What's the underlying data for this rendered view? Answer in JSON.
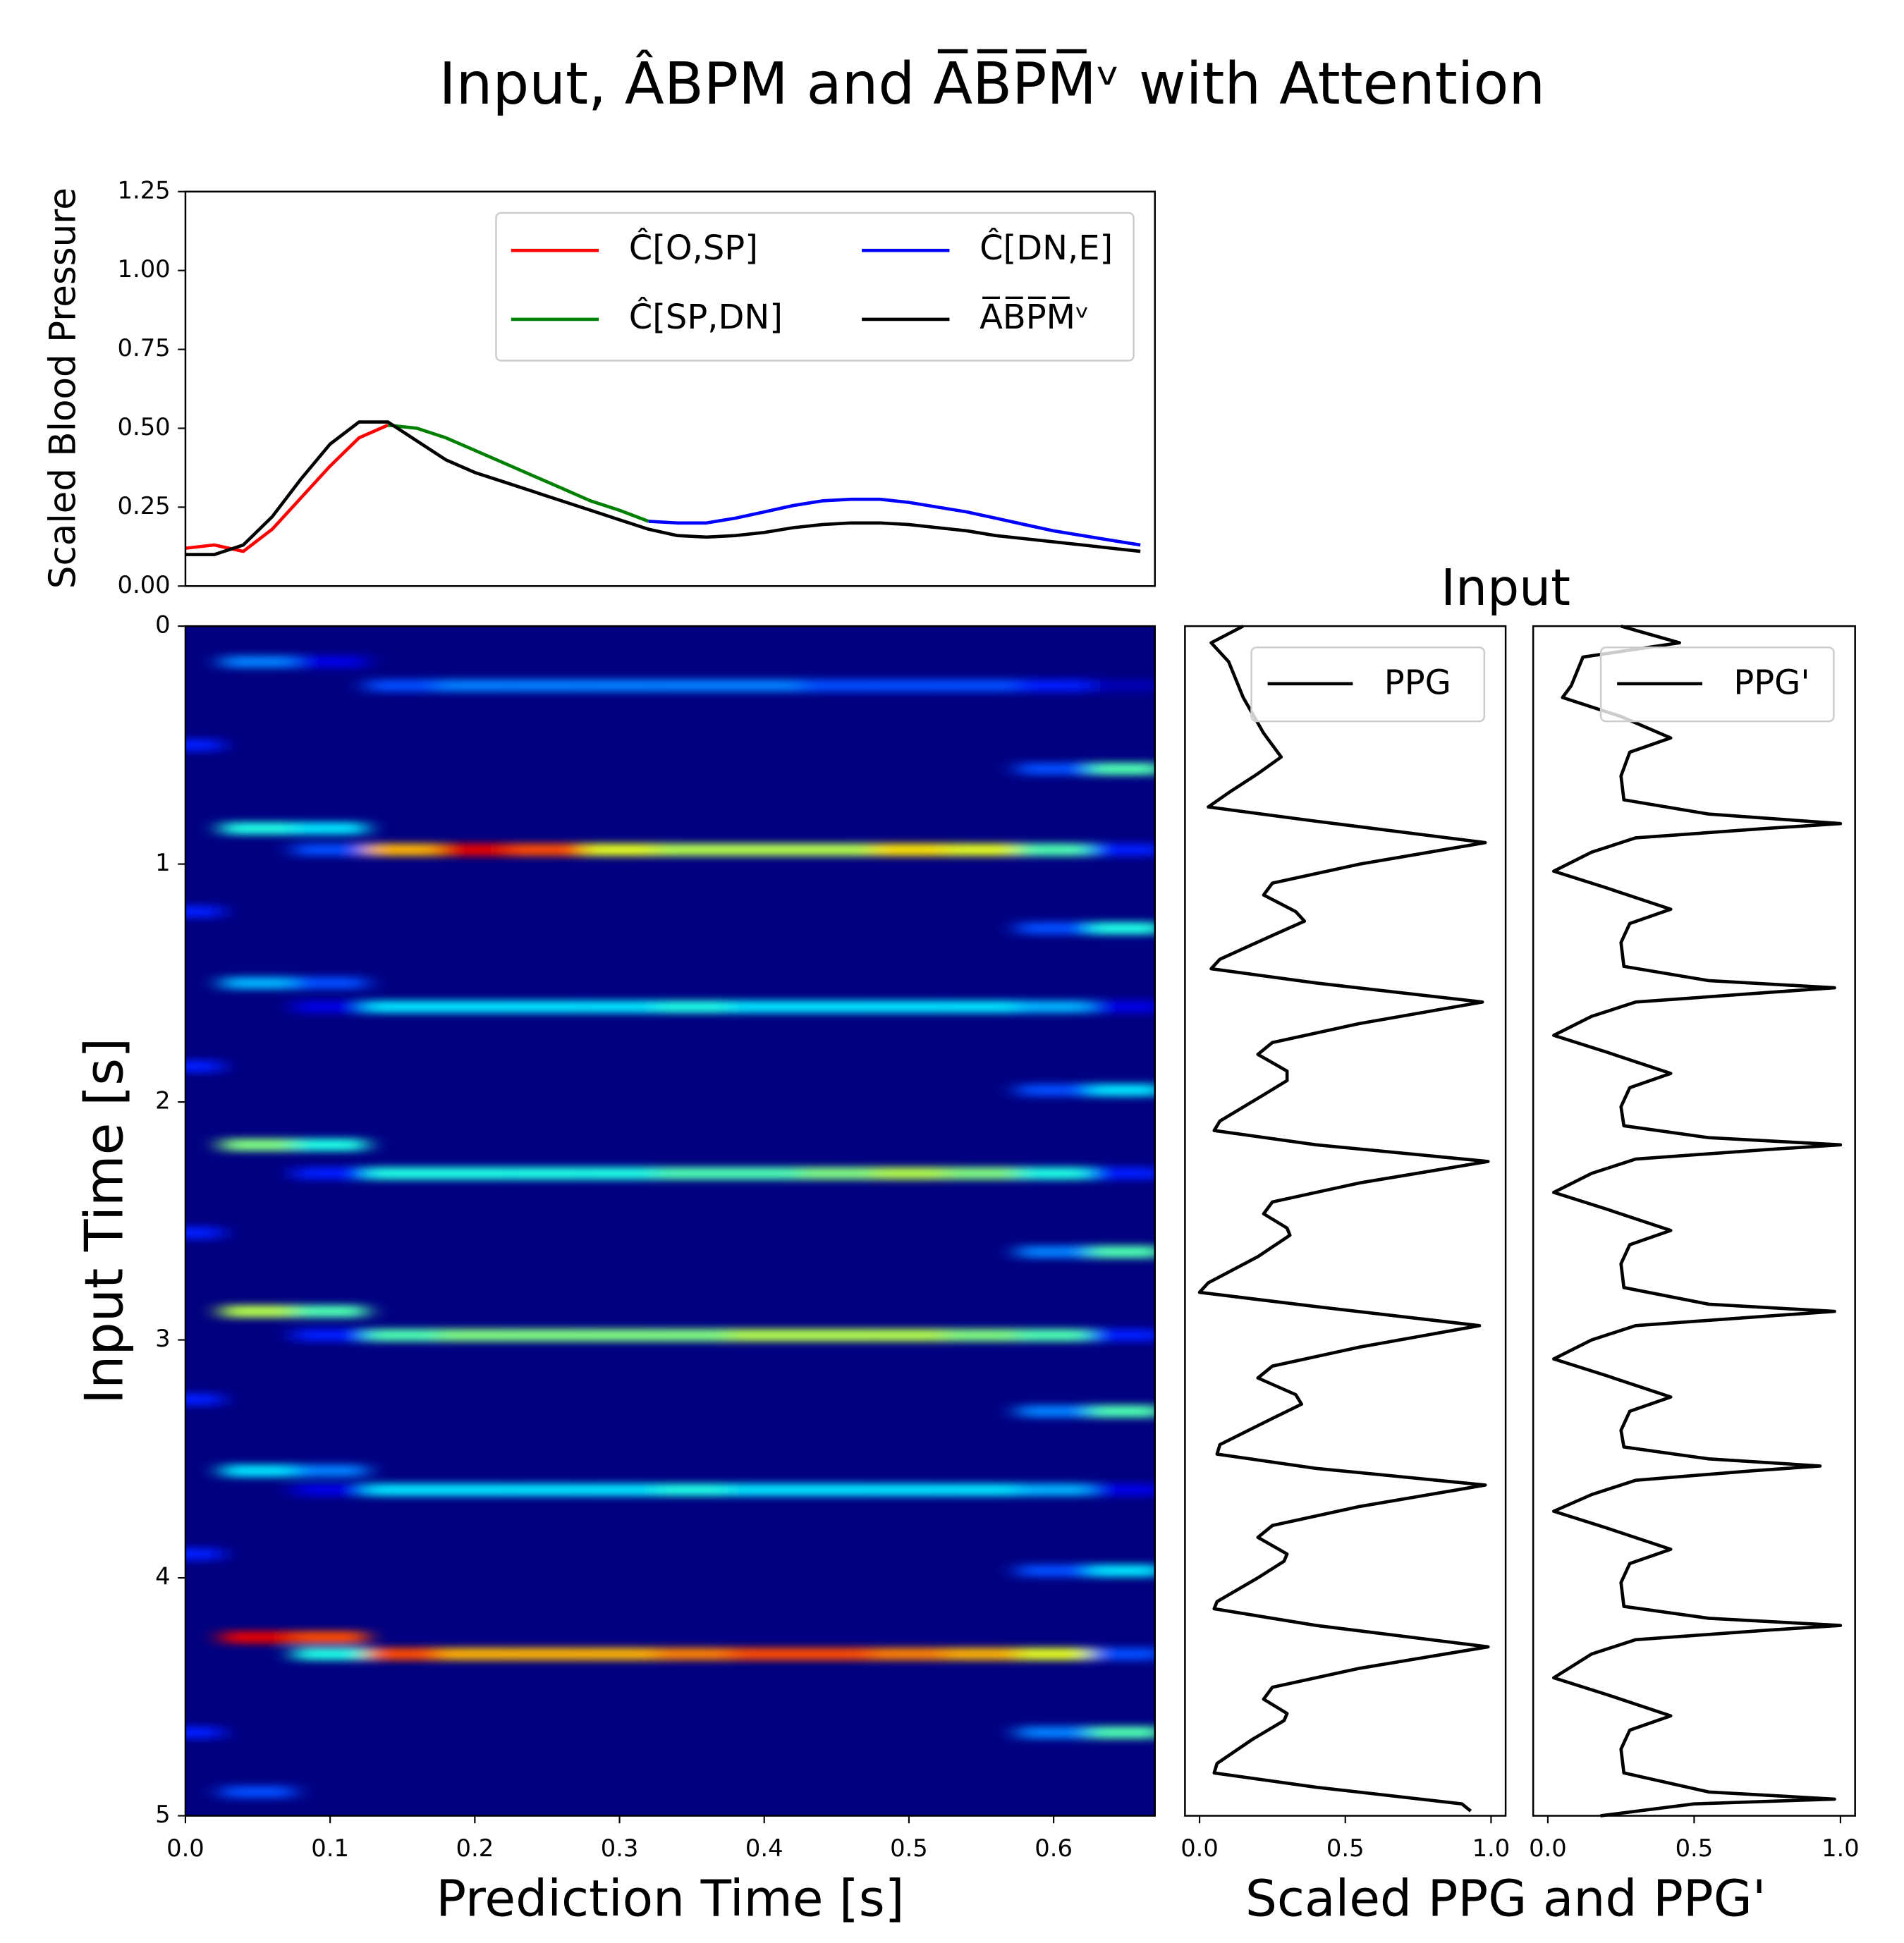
{
  "chart_data": [
    {
      "type": "line",
      "title": "Input, ÂBPM and A̅B̅P̅M̅ᵛ with Attention",
      "ylabel": "Scaled Blood Pressure",
      "xlim": [
        0,
        0.67
      ],
      "ylim": [
        0,
        1.25
      ],
      "yticks": [
        {
          "value": 0,
          "label": "0.00"
        },
        {
          "value": 0.25,
          "label": "0.25"
        },
        {
          "value": 0.5,
          "label": "0.50"
        },
        {
          "value": 0.75,
          "label": "0.75"
        },
        {
          "value": 1,
          "label": "1.00"
        },
        {
          "value": 1.25,
          "label": "1.25"
        }
      ],
      "legend": "upper right",
      "x": [
        0,
        0.02,
        0.04,
        0.06,
        0.08,
        0.1,
        0.12,
        0.14,
        0.16,
        0.18,
        0.2,
        0.22,
        0.24,
        0.26,
        0.28,
        0.3,
        0.32,
        0.34,
        0.36,
        0.38,
        0.4,
        0.42,
        0.44,
        0.46,
        0.48,
        0.5,
        0.52,
        0.54,
        0.56,
        0.58,
        0.6,
        0.62,
        0.64,
        0.66
      ],
      "series": [
        {
          "name": "Ĉ[O,SP]",
          "color": "#ff0000",
          "values": [
            0.12,
            0.13,
            0.11,
            0.18,
            0.28,
            0.38,
            0.47,
            0.51,
            null,
            null,
            null,
            null,
            null,
            null,
            null,
            null,
            null,
            null,
            null,
            null,
            null,
            null,
            null,
            null,
            null,
            null,
            null,
            null,
            null,
            null,
            null,
            null,
            null,
            null
          ]
        },
        {
          "name": "Ĉ[SP,DN]",
          "color": "#008000",
          "values": [
            null,
            null,
            null,
            null,
            null,
            null,
            null,
            0.51,
            0.5,
            0.47,
            0.43,
            0.39,
            0.35,
            0.31,
            0.27,
            0.24,
            0.205,
            null,
            null,
            null,
            null,
            null,
            null,
            null,
            null,
            null,
            null,
            null,
            null,
            null,
            null,
            null,
            null,
            null
          ]
        },
        {
          "name": "Ĉ[DN,E]",
          "color": "#0000ff",
          "values": [
            null,
            null,
            null,
            null,
            null,
            null,
            null,
            null,
            null,
            null,
            null,
            null,
            null,
            null,
            null,
            null,
            0.205,
            0.2,
            0.2,
            0.215,
            0.235,
            0.255,
            0.27,
            0.275,
            0.275,
            0.265,
            0.25,
            0.235,
            0.215,
            0.195,
            0.175,
            0.16,
            0.145,
            0.13
          ]
        },
        {
          "name": "A̅B̅P̅M̅ᵛ",
          "color": "#000000",
          "values": [
            0.1,
            0.1,
            0.13,
            0.22,
            0.34,
            0.45,
            0.52,
            0.52,
            0.46,
            0.4,
            0.36,
            0.33,
            0.3,
            0.27,
            0.24,
            0.21,
            0.18,
            0.16,
            0.155,
            0.16,
            0.17,
            0.185,
            0.195,
            0.2,
            0.2,
            0.195,
            0.185,
            0.175,
            0.16,
            0.15,
            0.14,
            0.13,
            0.12,
            0.11
          ]
        }
      ]
    },
    {
      "type": "heatmap",
      "xlabel": "Prediction Time [s]",
      "ylabel": "Input Time [s]",
      "colormap": "jet",
      "vlim": [
        0,
        1
      ],
      "xlim": [
        0,
        0.67
      ],
      "xticks": [
        {
          "value": 0,
          "label": "0.0"
        },
        0.1,
        0.2,
        0.3,
        0.4,
        0.5,
        0.6
      ],
      "ylim": [
        5,
        0
      ],
      "yticks": [
        0,
        1,
        2,
        3,
        4,
        5
      ],
      "x": [
        0,
        0.05,
        0.1,
        0.15,
        0.2,
        0.25,
        0.3,
        0.35,
        0.4,
        0.45,
        0.5,
        0.55,
        0.6,
        0.65
      ],
      "y": [
        0.15,
        0.25,
        0.5,
        0.6,
        0.85,
        0.94,
        1.2,
        1.27,
        1.5,
        1.6,
        1.85,
        1.95,
        2.18,
        2.3,
        2.55,
        2.63,
        2.88,
        2.98,
        3.25,
        3.3,
        3.55,
        3.63,
        3.9,
        3.97,
        4.25,
        4.32,
        4.65,
        4.9
      ],
      "values": [
        [
          0,
          0.25,
          0.1,
          0,
          0,
          0,
          0,
          0,
          0,
          0,
          0,
          0,
          0,
          0
        ],
        [
          0,
          0,
          0,
          0.2,
          0.25,
          0.25,
          0.25,
          0.25,
          0.25,
          0.2,
          0.2,
          0.2,
          0.15,
          0.05
        ],
        [
          0.15,
          0,
          0,
          0,
          0,
          0,
          0,
          0,
          0,
          0,
          0,
          0,
          0,
          0
        ],
        [
          0,
          0,
          0,
          0,
          0,
          0,
          0,
          0,
          0,
          0,
          0,
          0,
          0.2,
          0.45
        ],
        [
          0,
          0.4,
          0.35,
          0,
          0,
          0,
          0,
          0,
          0,
          0,
          0,
          0,
          0,
          0
        ],
        [
          0,
          0,
          0.2,
          0.7,
          0.9,
          0.8,
          0.6,
          0.55,
          0.55,
          0.55,
          0.65,
          0.6,
          0.45,
          0.15
        ],
        [
          0.15,
          0,
          0,
          0,
          0,
          0,
          0,
          0,
          0,
          0,
          0,
          0,
          0,
          0
        ],
        [
          0,
          0,
          0,
          0,
          0,
          0,
          0,
          0,
          0,
          0,
          0,
          0,
          0.2,
          0.4
        ],
        [
          0,
          0.3,
          0.2,
          0,
          0,
          0,
          0,
          0,
          0,
          0,
          0,
          0,
          0,
          0
        ],
        [
          0,
          0,
          0.1,
          0.35,
          0.35,
          0.35,
          0.35,
          0.4,
          0.35,
          0.35,
          0.35,
          0.35,
          0.3,
          0.1
        ],
        [
          0.15,
          0,
          0,
          0,
          0,
          0,
          0,
          0,
          0,
          0,
          0,
          0,
          0,
          0
        ],
        [
          0,
          0,
          0,
          0,
          0,
          0,
          0,
          0,
          0,
          0,
          0,
          0,
          0.2,
          0.35
        ],
        [
          0,
          0.5,
          0.4,
          0,
          0,
          0,
          0,
          0,
          0,
          0,
          0,
          0,
          0,
          0
        ],
        [
          0,
          0,
          0.15,
          0.4,
          0.4,
          0.4,
          0.4,
          0.45,
          0.45,
          0.5,
          0.55,
          0.5,
          0.4,
          0.15
        ],
        [
          0.15,
          0,
          0,
          0,
          0,
          0,
          0,
          0,
          0,
          0,
          0,
          0,
          0,
          0
        ],
        [
          0,
          0,
          0,
          0,
          0,
          0,
          0,
          0,
          0,
          0,
          0,
          0,
          0.25,
          0.45
        ],
        [
          0,
          0.55,
          0.45,
          0,
          0,
          0,
          0,
          0,
          0,
          0,
          0,
          0,
          0,
          0
        ],
        [
          0,
          0,
          0.15,
          0.45,
          0.5,
          0.5,
          0.5,
          0.5,
          0.55,
          0.55,
          0.55,
          0.5,
          0.45,
          0.15
        ],
        [
          0.15,
          0,
          0,
          0,
          0,
          0,
          0,
          0,
          0,
          0,
          0,
          0,
          0,
          0
        ],
        [
          0,
          0,
          0,
          0,
          0,
          0,
          0,
          0,
          0,
          0,
          0,
          0,
          0.25,
          0.45
        ],
        [
          0,
          0.35,
          0.25,
          0,
          0,
          0,
          0,
          0,
          0,
          0,
          0,
          0,
          0,
          0
        ],
        [
          0,
          0,
          0.1,
          0.35,
          0.35,
          0.35,
          0.35,
          0.4,
          0.35,
          0.35,
          0.35,
          0.35,
          0.3,
          0.1
        ],
        [
          0.15,
          0,
          0,
          0,
          0,
          0,
          0,
          0,
          0,
          0,
          0,
          0,
          0,
          0
        ],
        [
          0,
          0,
          0,
          0,
          0,
          0,
          0,
          0,
          0,
          0,
          0,
          0,
          0.2,
          0.35
        ],
        [
          0,
          0.9,
          0.8,
          0,
          0,
          0,
          0,
          0,
          0,
          0,
          0,
          0,
          0,
          0
        ],
        [
          0,
          0,
          0.4,
          0.8,
          0.7,
          0.7,
          0.7,
          0.75,
          0.8,
          0.8,
          0.75,
          0.7,
          0.6,
          0.2
        ],
        [
          0.15,
          0,
          0,
          0,
          0,
          0,
          0,
          0,
          0,
          0,
          0,
          0,
          0.25,
          0.45
        ],
        [
          0,
          0.2,
          0,
          0,
          0,
          0,
          0,
          0,
          0,
          0,
          0,
          0,
          0,
          0
        ]
      ]
    },
    {
      "type": "vline",
      "title": "Input",
      "xlabel": "Scaled PPG and PPG'",
      "subplots": true,
      "legend": "upper right",
      "xlim": [
        -0.05,
        1.05
      ],
      "xticks": [
        {
          "value": 0,
          "label": "0.0"
        },
        0.5,
        {
          "value": 1,
          "label": "1.0"
        }
      ],
      "ylim": [
        5,
        0
      ],
      "series": [
        {
          "name": "PPG",
          "color": "#000000",
          "y": [
            0,
            0.07,
            0.15,
            0.3,
            0.45,
            0.55,
            0.62,
            0.7,
            0.76,
            0.82,
            0.91,
            1.0,
            1.08,
            1.13,
            1.2,
            1.24,
            1.3,
            1.4,
            1.44,
            1.5,
            1.58,
            1.67,
            1.75,
            1.8,
            1.87,
            1.91,
            1.97,
            2.08,
            2.12,
            2.18,
            2.25,
            2.34,
            2.42,
            2.47,
            2.53,
            2.56,
            2.65,
            2.76,
            2.8,
            2.86,
            2.94,
            3.03,
            3.11,
            3.16,
            3.23,
            3.27,
            3.33,
            3.44,
            3.48,
            3.54,
            3.61,
            3.7,
            3.78,
            3.83,
            3.9,
            3.93,
            4.0,
            4.1,
            4.13,
            4.2,
            4.29,
            4.38,
            4.46,
            4.51,
            4.57,
            4.6,
            4.68,
            4.78,
            4.82,
            4.88,
            4.95,
            4.98
          ],
          "values": [
            0.15,
            0.04,
            0.1,
            0.15,
            0.22,
            0.28,
            0.2,
            0.1,
            0.03,
            0.4,
            0.98,
            0.55,
            0.25,
            0.22,
            0.33,
            0.36,
            0.25,
            0.07,
            0.04,
            0.4,
            0.97,
            0.55,
            0.25,
            0.2,
            0.3,
            0.3,
            0.22,
            0.07,
            0.05,
            0.4,
            0.99,
            0.55,
            0.25,
            0.22,
            0.3,
            0.31,
            0.2,
            0.03,
            0.0,
            0.4,
            0.96,
            0.55,
            0.25,
            0.2,
            0.33,
            0.35,
            0.25,
            0.07,
            0.06,
            0.4,
            0.98,
            0.55,
            0.25,
            0.2,
            0.3,
            0.29,
            0.2,
            0.06,
            0.05,
            0.4,
            0.99,
            0.55,
            0.25,
            0.22,
            0.3,
            0.29,
            0.18,
            0.06,
            0.05,
            0.4,
            0.9,
            0.93
          ]
        },
        {
          "name": "PPG'",
          "color": "#000000",
          "y": [
            0,
            0.07,
            0.13,
            0.25,
            0.3,
            0.38,
            0.47,
            0.53,
            0.63,
            0.73,
            0.79,
            0.83,
            0.85,
            0.89,
            0.95,
            1.03,
            1.1,
            1.19,
            1.25,
            1.33,
            1.43,
            1.49,
            1.52,
            1.54,
            1.58,
            1.64,
            1.72,
            1.79,
            1.88,
            1.94,
            2.02,
            2.1,
            2.15,
            2.18,
            2.2,
            2.24,
            2.3,
            2.38,
            2.45,
            2.54,
            2.6,
            2.68,
            2.78,
            2.85,
            2.88,
            2.9,
            2.94,
            3.0,
            3.08,
            3.15,
            3.24,
            3.3,
            3.38,
            3.45,
            3.5,
            3.53,
            3.55,
            3.59,
            3.65,
            3.72,
            3.79,
            3.88,
            3.94,
            4.02,
            4.12,
            4.17,
            4.2,
            4.22,
            4.26,
            4.32,
            4.42,
            4.49,
            4.58,
            4.64,
            4.72,
            4.82,
            4.9,
            4.93,
            4.95,
            5.0
          ],
          "values": [
            0.25,
            0.45,
            0.12,
            0.08,
            0.05,
            0.25,
            0.42,
            0.28,
            0.25,
            0.26,
            0.55,
            1.0,
            0.75,
            0.3,
            0.15,
            0.02,
            0.2,
            0.42,
            0.28,
            0.25,
            0.26,
            0.55,
            0.98,
            0.75,
            0.3,
            0.15,
            0.02,
            0.2,
            0.42,
            0.28,
            0.25,
            0.26,
            0.55,
            1.0,
            0.75,
            0.3,
            0.15,
            0.02,
            0.2,
            0.42,
            0.28,
            0.25,
            0.26,
            0.55,
            0.98,
            0.75,
            0.3,
            0.15,
            0.02,
            0.2,
            0.42,
            0.28,
            0.25,
            0.26,
            0.55,
            0.93,
            0.7,
            0.3,
            0.15,
            0.02,
            0.2,
            0.42,
            0.28,
            0.25,
            0.26,
            0.55,
            1.0,
            0.75,
            0.3,
            0.15,
            0.02,
            0.2,
            0.42,
            0.28,
            0.25,
            0.26,
            0.55,
            0.98,
            0.5,
            0.18
          ]
        }
      ]
    }
  ]
}
